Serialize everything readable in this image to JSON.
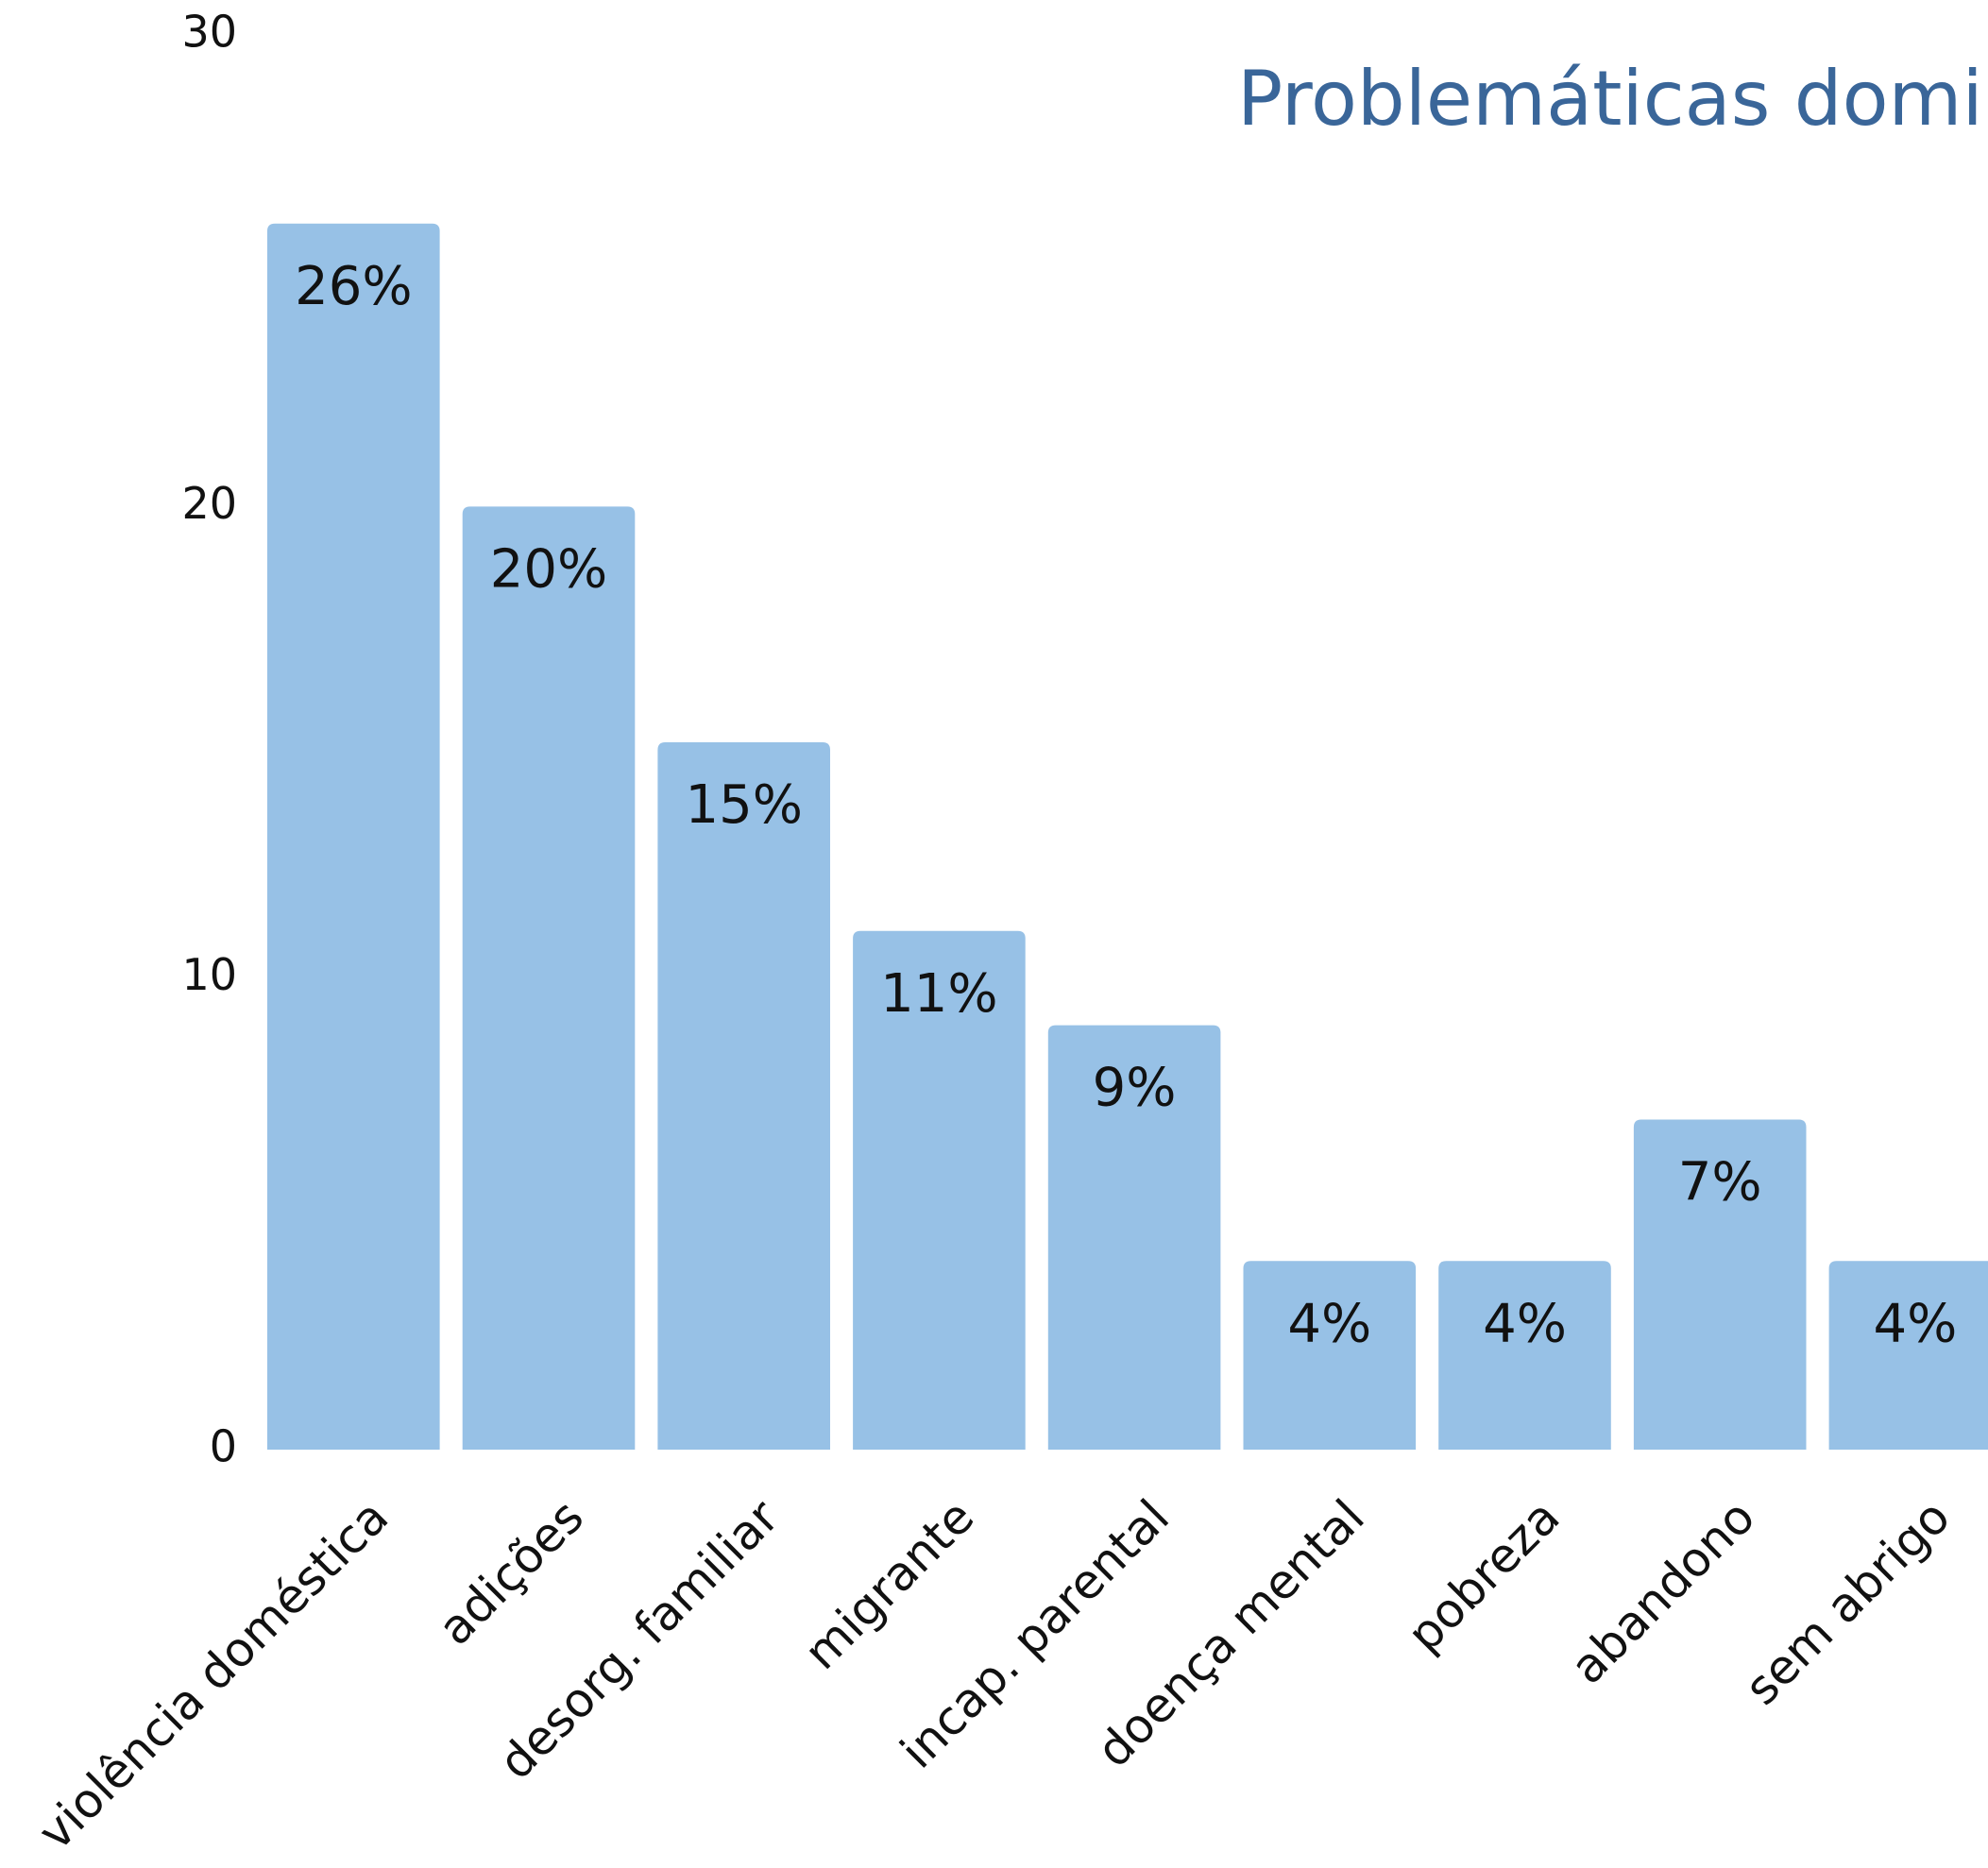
{
  "chart_data": {
    "type": "bar",
    "title": "Problemáticas domina",
    "categories": [
      "violência doméstica",
      "adições",
      "desorg. familiar",
      "migrante",
      "incap. parental",
      "doença mental",
      "pobreza",
      "abandono",
      "sem abrigo"
    ],
    "values": [
      26,
      20,
      15,
      11,
      9,
      4,
      4,
      7,
      4
    ],
    "value_labels": [
      "26%",
      "20%",
      "15%",
      "11%",
      "9%",
      "4%",
      "4%",
      "7%",
      "4%"
    ],
    "color": "#97c1e6",
    "ylim": [
      0,
      30
    ],
    "yticks": [
      0,
      10,
      20,
      30
    ],
    "grid": false
  }
}
